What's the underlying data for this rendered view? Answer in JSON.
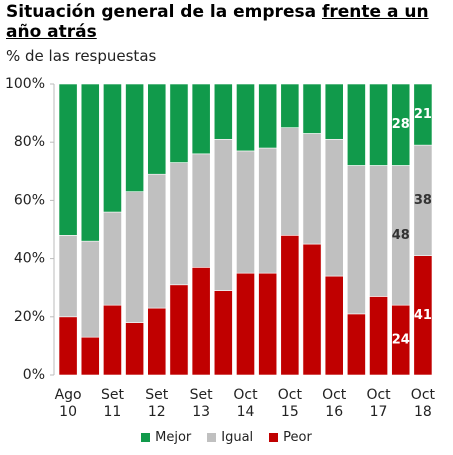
{
  "chart_data": {
    "type": "stacked_bar",
    "title": "Situación general de la empresa",
    "title_underlined": "frente a un año atrás",
    "subtitle": "% de las respuestas",
    "categories": [
      "Ago 10",
      null,
      "Set 11",
      null,
      "Set 12",
      null,
      "Set 13",
      null,
      "Oct 14",
      null,
      "Oct 15",
      null,
      "Oct 16",
      null,
      "Oct 17",
      null,
      "Oct 18"
    ],
    "series": [
      {
        "name": "Peor",
        "color": "#c00000",
        "label_color": "#ffffff",
        "values": [
          20,
          13,
          24,
          18,
          23,
          31,
          37,
          29,
          35,
          35,
          48,
          45,
          34,
          21,
          27,
          24,
          41
        ],
        "value_labels": [
          null,
          null,
          null,
          null,
          null,
          null,
          null,
          null,
          null,
          null,
          null,
          null,
          null,
          null,
          null,
          "24",
          "41"
        ]
      },
      {
        "name": "Igual",
        "color": "#c0c0c0",
        "label_color": "#333333",
        "values": [
          28,
          33,
          32,
          45,
          46,
          42,
          39,
          52,
          42,
          43,
          37,
          38,
          47,
          51,
          45,
          48,
          38
        ],
        "value_labels": [
          null,
          null,
          null,
          null,
          null,
          null,
          null,
          null,
          null,
          null,
          null,
          null,
          null,
          null,
          null,
          "48",
          "38"
        ]
      },
      {
        "name": "Mejor",
        "color": "#119a4b",
        "label_color": "#ffffff",
        "values": [
          52,
          54,
          44,
          37,
          31,
          27,
          24,
          19,
          23,
          22,
          15,
          17,
          19,
          28,
          28,
          28,
          21
        ],
        "value_labels": [
          null,
          null,
          null,
          null,
          null,
          null,
          null,
          null,
          null,
          null,
          null,
          null,
          null,
          null,
          null,
          "28",
          "21"
        ]
      }
    ],
    "legend_order": [
      2,
      1,
      0
    ],
    "ylim": [
      0,
      100
    ],
    "yticks": [
      {
        "value": 0,
        "label": "0%"
      },
      {
        "value": 20,
        "label": "20%"
      },
      {
        "value": 40,
        "label": "40%"
      },
      {
        "value": 60,
        "label": "60%"
      },
      {
        "value": 80,
        "label": "80%"
      },
      {
        "value": 100,
        "label": "100%"
      }
    ],
    "grid": false
  }
}
